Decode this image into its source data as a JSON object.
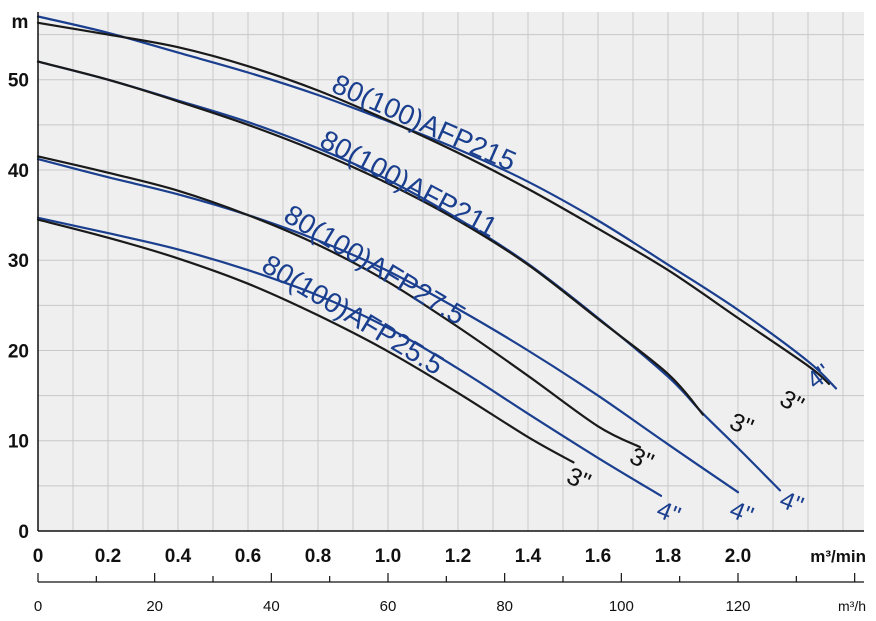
{
  "chart_data": {
    "type": "line",
    "ylabel": "m",
    "xlabel": "m³/min",
    "x2label": "m³/h",
    "xlim": [
      0,
      2.36
    ],
    "ylim": [
      0,
      57.5
    ],
    "x2lim": [
      0,
      141.6
    ],
    "x_ticks": [
      "0",
      "0.2",
      "0.4",
      "0.6",
      "0.8",
      "1.0",
      "1.2",
      "1.4",
      "1.6",
      "1.8",
      "2.0",
      "m³/min"
    ],
    "x2_ticks": [
      "0",
      "20",
      "40",
      "60",
      "80",
      "100",
      "120",
      "m³/h"
    ],
    "y_ticks": [
      "0",
      "10",
      "20",
      "30",
      "40",
      "50",
      "m"
    ],
    "colors": {
      "blue": "#1b3f8f",
      "black": "#1a1a1a",
      "grid": "#c8c8c8",
      "plot_bg": "#efefef"
    },
    "models": [
      {
        "name": "80(100)AFP215",
        "series": [
          {
            "name": "4\"",
            "x": [
              0,
              0.2,
              0.4,
              0.6,
              0.8,
              1.0,
              1.2,
              1.4,
              1.6,
              1.8,
              2.0,
              2.2,
              2.28
            ],
            "y": [
              57,
              55.2,
              53,
              50.8,
              48.3,
              45.4,
              42.3,
              38.7,
              34.4,
              29.5,
              24.5,
              18.8,
              15.8
            ]
          },
          {
            "name": "3\"",
            "x": [
              0,
              0.2,
              0.4,
              0.6,
              0.8,
              1.0,
              1.2,
              1.4,
              1.6,
              1.8,
              2.0,
              2.2,
              2.26
            ],
            "y": [
              56.3,
              55,
              53.6,
              51.5,
              48.8,
              45.5,
              41.9,
              37.9,
              33.5,
              28.9,
              23.6,
              18.3,
              16.3
            ]
          }
        ]
      },
      {
        "name": "80(100)AFP211",
        "series": [
          {
            "name": "4\"",
            "x": [
              0,
              0.2,
              0.4,
              0.6,
              0.8,
              1.0,
              1.2,
              1.4,
              1.6,
              1.8,
              1.9,
              2.0,
              2.12
            ],
            "y": [
              52,
              50,
              47.7,
              45.3,
              42.4,
              38.9,
              34.6,
              29.6,
              23.6,
              17.1,
              13,
              9.2,
              4.5
            ]
          },
          {
            "name": "3\"",
            "x": [
              0,
              0.2,
              0.4,
              0.6,
              0.8,
              1.0,
              1.2,
              1.4,
              1.6,
              1.8,
              1.9
            ],
            "y": [
              52,
              50,
              47.6,
              45,
              42,
              38.5,
              34.4,
              29.5,
              23.5,
              17.4,
              12.9
            ]
          }
        ]
      },
      {
        "name": "80(100)AFP27.5",
        "series": [
          {
            "name": "4\"",
            "x": [
              0,
              0.2,
              0.4,
              0.6,
              0.8,
              1.0,
              1.2,
              1.4,
              1.6,
              1.8,
              2.0
            ],
            "y": [
              41.2,
              39.2,
              37.3,
              35,
              32.2,
              28.8,
              24.6,
              20,
              15,
              9.6,
              4.3
            ]
          },
          {
            "name": "3\"",
            "x": [
              0,
              0.2,
              0.4,
              0.6,
              0.8,
              1.0,
              1.2,
              1.4,
              1.6,
              1.72
            ],
            "y": [
              41.5,
              39.7,
              37.7,
              35,
              31.7,
              27.6,
              22.6,
              17.2,
              11.6,
              9.3
            ]
          }
        ]
      },
      {
        "name": "80(100)AFP25.5",
        "series": [
          {
            "name": "4\"",
            "x": [
              0,
              0.2,
              0.4,
              0.6,
              0.8,
              1.0,
              1.2,
              1.4,
              1.6,
              1.78
            ],
            "y": [
              34.7,
              33,
              31.2,
              28.9,
              26.1,
              22.5,
              18,
              13,
              8.1,
              3.9
            ]
          },
          {
            "name": "3\"",
            "x": [
              0,
              0.2,
              0.4,
              0.6,
              0.8,
              1.0,
              1.2,
              1.4,
              1.53
            ],
            "y": [
              34.5,
              32.5,
              30.2,
              27.4,
              23.9,
              19.9,
              15.3,
              10.4,
              7.6
            ]
          }
        ]
      }
    ]
  }
}
